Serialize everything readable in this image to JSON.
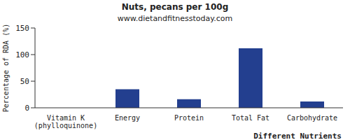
{
  "chart_data": {
    "type": "bar",
    "title": "Nuts, pecans per 100g",
    "subtitle": "www.dietandfitnesstoday.com",
    "x_label": "Different Nutrients",
    "y_label": "Percentage of RDA (%)",
    "categories": [
      "Vitamin K (phylloquinone)",
      "Energy",
      "Protein",
      "Total Fat",
      "Carbohydrate"
    ],
    "values": [
      0,
      35,
      16,
      112,
      12
    ],
    "color": "#233f8f",
    "ylim": [
      0,
      150
    ],
    "yticks": [
      0,
      50,
      100,
      150
    ],
    "grid": false
  }
}
